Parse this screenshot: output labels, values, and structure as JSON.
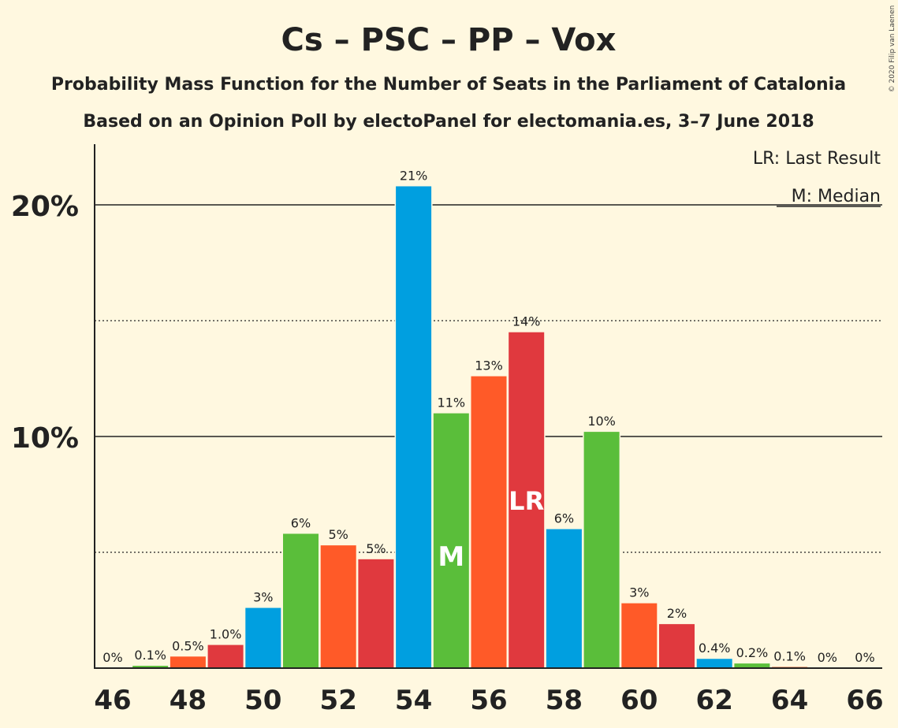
{
  "chart_data": {
    "type": "bar",
    "title": "Cs – PSC – PP – Vox",
    "subtitle1": "Probability Mass Function for the Number of Seats in the Parliament of Catalonia",
    "subtitle2": "Based on an Opinion Poll by electoPanel for electomania.es, 3–7 June 2018",
    "legend": {
      "lr": "LR: Last Result",
      "m": "M: Median",
      "placement": "top-right"
    },
    "copyright": "© 2020 Filip van Laenen",
    "categories": [
      46,
      47,
      48,
      49,
      50,
      51,
      52,
      53,
      54,
      55,
      56,
      57,
      58,
      59,
      60,
      61,
      62,
      63,
      64,
      65,
      66
    ],
    "values": [
      0,
      0.1,
      0.5,
      1.0,
      2.6,
      5.8,
      5.3,
      4.7,
      20.8,
      11.0,
      12.6,
      14.5,
      6.0,
      10.2,
      2.8,
      1.9,
      0.4,
      0.2,
      0.05,
      0,
      0
    ],
    "labels": [
      "0%",
      "0.1%",
      "0.5%",
      "1.0%",
      "3%",
      "6%",
      "5%",
      "5%",
      "21%",
      "11%",
      "13%",
      "14%",
      "6%",
      "10%",
      "3%",
      "2%",
      "0.4%",
      "0.2%",
      "0.1%",
      "0%",
      "0%"
    ],
    "x_tick_labels": [
      "46",
      "48",
      "50",
      "52",
      "54",
      "56",
      "58",
      "60",
      "62",
      "64",
      "66"
    ],
    "y_tick_labels": [
      "10%",
      "20%"
    ],
    "ylim": [
      0,
      22.7
    ],
    "median_seat": 55,
    "median_marker": "M",
    "last_result_seat": 57,
    "last_result_marker": "LR",
    "colors": {
      "cs": "#009fe0",
      "psc": "#ff5a28",
      "pp": "#e0393e",
      "vox": "#5abe3a",
      "background": "#fff8e0"
    },
    "bar_colors": [
      "#009fe0",
      "#5abe3a",
      "#ff5a28",
      "#e0393e",
      "#009fe0",
      "#5abe3a",
      "#ff5a28",
      "#e0393e",
      "#009fe0",
      "#5abe3a",
      "#ff5a28",
      "#e0393e",
      "#009fe0",
      "#5abe3a",
      "#ff5a28",
      "#e0393e",
      "#009fe0",
      "#5abe3a",
      "#ff5a28",
      "#e0393e",
      "#009fe0"
    ],
    "grid": true
  }
}
